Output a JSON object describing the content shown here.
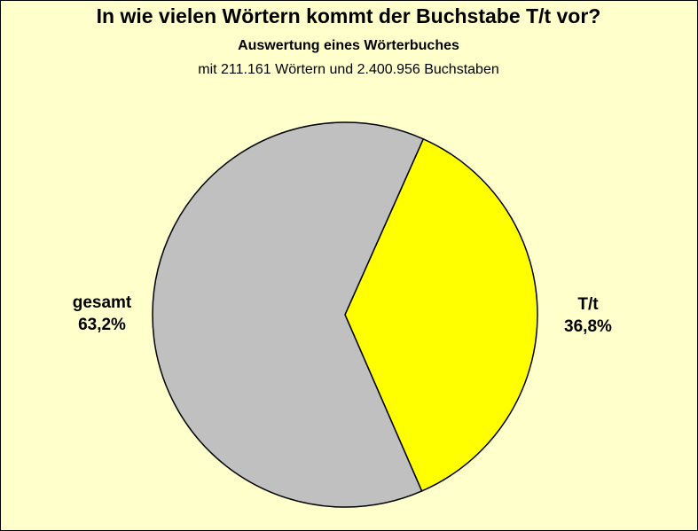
{
  "chart_data": {
    "type": "pie",
    "title": "In wie vielen Wörtern kommt der Buchstabe T/t vor?",
    "subtitle": "Auswertung eines Wörterbuches",
    "description": "mit 211.161 Wörtern und 2.400.956 Buchstaben",
    "categories": [
      "T/t",
      "gesamt"
    ],
    "values": [
      36.8,
      63.2
    ],
    "value_labels": [
      "36,8%",
      "63,2%"
    ],
    "colors": [
      "#ffff00",
      "#c0c0c0"
    ]
  }
}
